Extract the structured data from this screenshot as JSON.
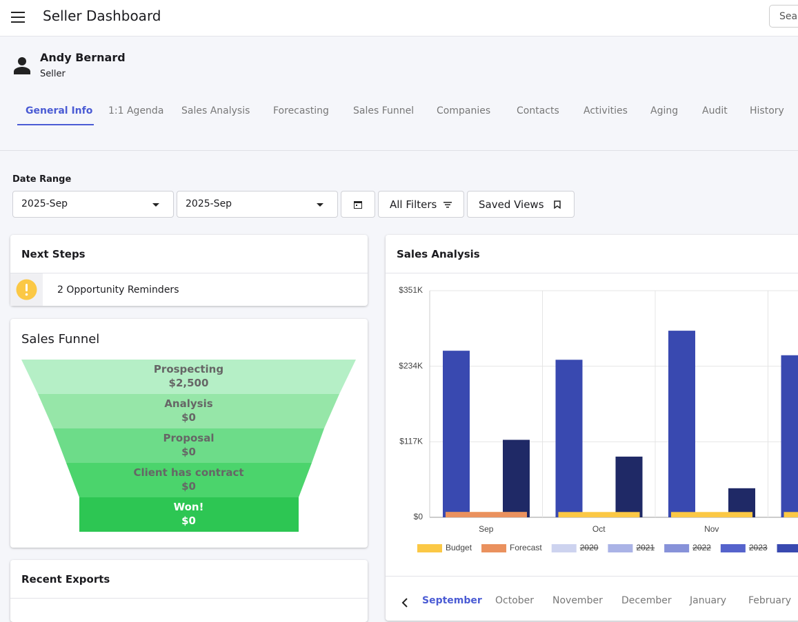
{
  "header": {
    "title": "Seller Dashboard",
    "search_placeholder": "Search"
  },
  "user": {
    "name": "Andy Bernard",
    "role": "Seller"
  },
  "tabs": {
    "items": [
      "General Info",
      "1:1 Agenda",
      "Sales Analysis",
      "Forecasting",
      "Sales Funnel",
      "Companies",
      "Contacts",
      "Activities",
      "Aging",
      "Audit",
      "History"
    ],
    "active": 0
  },
  "filters": {
    "label": "Date Range",
    "from": "2025-Sep",
    "to": "2025-Sep",
    "all_filters": "All Filters",
    "saved_views": "Saved Views"
  },
  "next_steps": {
    "title": "Next Steps",
    "reminder": "2 Opportunity Reminders"
  },
  "sales_funnel": {
    "title": "Sales Funnel",
    "stages": [
      {
        "name": "Prospecting",
        "value": "$2,500",
        "color": "#b5efc6"
      },
      {
        "name": "Analysis",
        "value": "$0",
        "color": "#96e6a8"
      },
      {
        "name": "Proposal",
        "value": "$0",
        "color": "#6ddc89"
      },
      {
        "name": "Client has contract",
        "value": "$0",
        "color": "#4bd46c"
      },
      {
        "name": "Won!",
        "value": "$0",
        "color": "#2dc653"
      }
    ]
  },
  "recent_exports": {
    "title": "Recent Exports"
  },
  "chart_data": {
    "type": "bar",
    "title": "Sales Analysis",
    "categories": [
      "Sep",
      "Oct",
      "Nov",
      null
    ],
    "ylim": [
      0,
      351000
    ],
    "yticks": [
      {
        "value": 0,
        "label": "$0"
      },
      {
        "value": 117000,
        "label": "$117K"
      },
      {
        "value": 234000,
        "label": "$234K"
      },
      {
        "value": 351000,
        "label": "$351K"
      }
    ],
    "grid": true,
    "legend": "bottom",
    "series": [
      {
        "name": "Budget",
        "color": "#fbc845",
        "values": [
          5000,
          5000,
          5000,
          5000
        ]
      },
      {
        "name": "Forecast",
        "color": "#ea915e",
        "values": [
          5000,
          null,
          null,
          null
        ]
      },
      {
        "name": "2020",
        "color": "#cdd3ef",
        "hidden": true,
        "values": [
          null,
          null,
          null,
          null
        ]
      },
      {
        "name": "2021",
        "color": "#aab3e6",
        "hidden": true,
        "values": [
          null,
          null,
          null,
          null
        ]
      },
      {
        "name": "2022",
        "color": "#8792d9",
        "hidden": true,
        "values": [
          null,
          null,
          null,
          null
        ]
      },
      {
        "name": "2023",
        "color": "#5563cc",
        "hidden": true,
        "values": [
          null,
          null,
          null,
          null
        ]
      },
      {
        "color": "#3949b0",
        "values": [
          258000,
          244000,
          289000,
          251000
        ]
      },
      {
        "color": "#1f2966",
        "values": [
          120000,
          94000,
          45000,
          null
        ]
      }
    ]
  },
  "months": {
    "items": [
      "September",
      "October",
      "November",
      "December",
      "January",
      "February"
    ],
    "active": 0
  }
}
